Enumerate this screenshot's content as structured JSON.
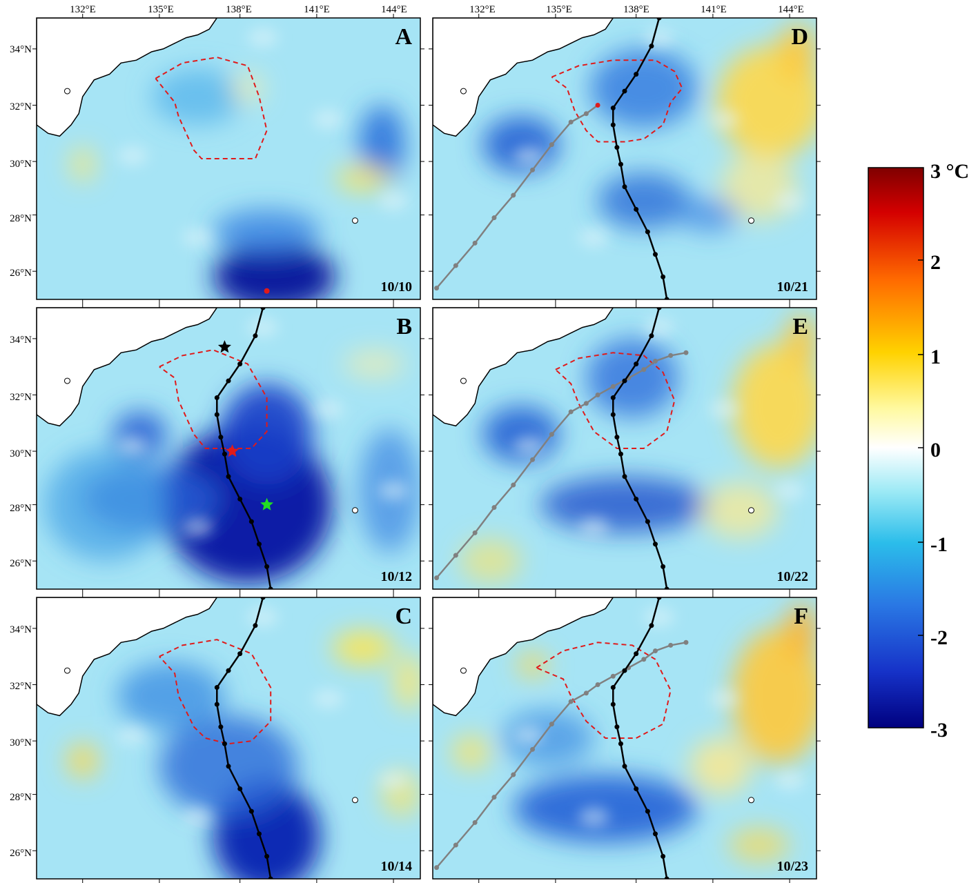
{
  "longitude_ticks": [
    "132°E",
    "135°E",
    "138°E",
    "141°E",
    "144°E"
  ],
  "latitude_ticks": [
    "34°N",
    "32°N",
    "30°N",
    "28°N",
    "26°N"
  ],
  "panels": [
    {
      "id": "A",
      "letter": "A",
      "date": "10/10",
      "current_track": false,
      "previous_track": "none",
      "stars": false
    },
    {
      "id": "B",
      "letter": "B",
      "date": "10/12",
      "current_track": true,
      "previous_track": "none",
      "stars": true
    },
    {
      "id": "C",
      "letter": "C",
      "date": "10/14",
      "current_track": true,
      "previous_track": "none",
      "stars": false
    },
    {
      "id": "D",
      "letter": "D",
      "date": "10/21",
      "current_track": true,
      "previous_track": "partial",
      "stars": false
    },
    {
      "id": "E",
      "letter": "E",
      "date": "10/22",
      "current_track": true,
      "previous_track": "full",
      "stars": false
    },
    {
      "id": "F",
      "letter": "F",
      "date": "10/23",
      "current_track": true,
      "previous_track": "full",
      "stars": false
    }
  ],
  "colorbar": {
    "labels": [
      "3 °C",
      "2",
      "1",
      "0",
      "-1",
      "-2",
      "-3"
    ],
    "stops": [
      "#7f0000",
      "#d40000",
      "#ff6a00",
      "#ffd200",
      "#fff9a0",
      "#ffffff",
      "#9ae9f5",
      "#2bbdea",
      "#2a78e4",
      "#1632c8",
      "#00007f"
    ]
  },
  "colors": {
    "ocean_base": "#a6e4f5",
    "land": "#ffffff",
    "eddy_contour": "#e01a1a",
    "current_track": "#000000",
    "previous_track": "#808080",
    "star_black": "#000000",
    "star_red": "#e01a1a",
    "star_green": "#22dd22"
  }
}
